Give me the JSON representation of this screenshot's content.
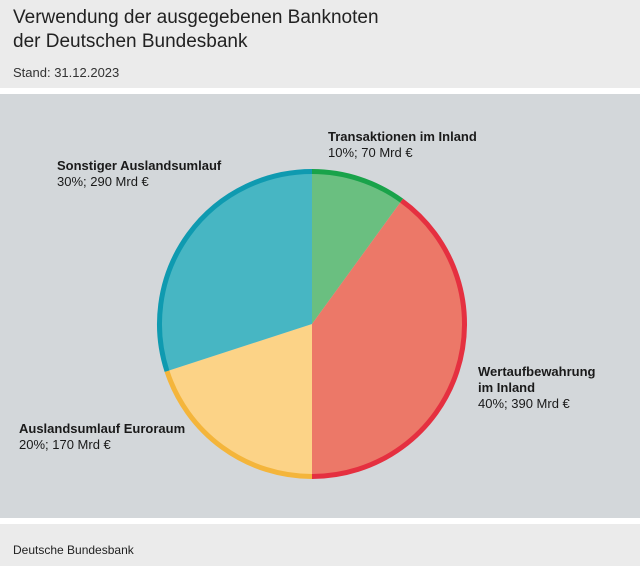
{
  "header": {
    "title": "Verwendung der ausgegebenen Banknoten\nder Deutschen Bundesbank",
    "subtitle": "Stand: 31.12.2023"
  },
  "footer": {
    "source": "Deutsche Bundesbank"
  },
  "colors": {
    "background_plot": "#d3d7da",
    "background_header": "#ebebeb"
  },
  "chart_data": {
    "type": "pie",
    "title": "Verwendung der ausgegebenen Banknoten der Deutschen Bundesbank",
    "subtitle": "Stand: 31.12.2023",
    "start_angle_deg": 0,
    "direction": "clockwise",
    "slices": [
      {
        "name": "Transaktionen im Inland",
        "percent": 10,
        "value": 70,
        "unit": "Mrd €",
        "label_value": "10%; 70 Mrd €",
        "fill": "#6abf80",
        "ring": "#19a34a"
      },
      {
        "name": "Wertaufbewahrung\nim Inland",
        "percent": 40,
        "value": 390,
        "unit": "Mrd €",
        "label_value": "40%; 390 Mrd €",
        "fill": "#ec7868",
        "ring": "#e53040"
      },
      {
        "name": "Auslandsumlauf Euroraum",
        "percent": 20,
        "value": 170,
        "unit": "Mrd €",
        "label_value": "20%; 170 Mrd €",
        "fill": "#fcd387",
        "ring": "#f4b53b"
      },
      {
        "name": "Sonstiger Auslandsumlauf",
        "percent": 30,
        "value": 290,
        "unit": "Mrd €",
        "label_value": "30%; 290 Mrd €",
        "fill": "#47b6c3",
        "ring": "#0f9ab0"
      }
    ]
  }
}
